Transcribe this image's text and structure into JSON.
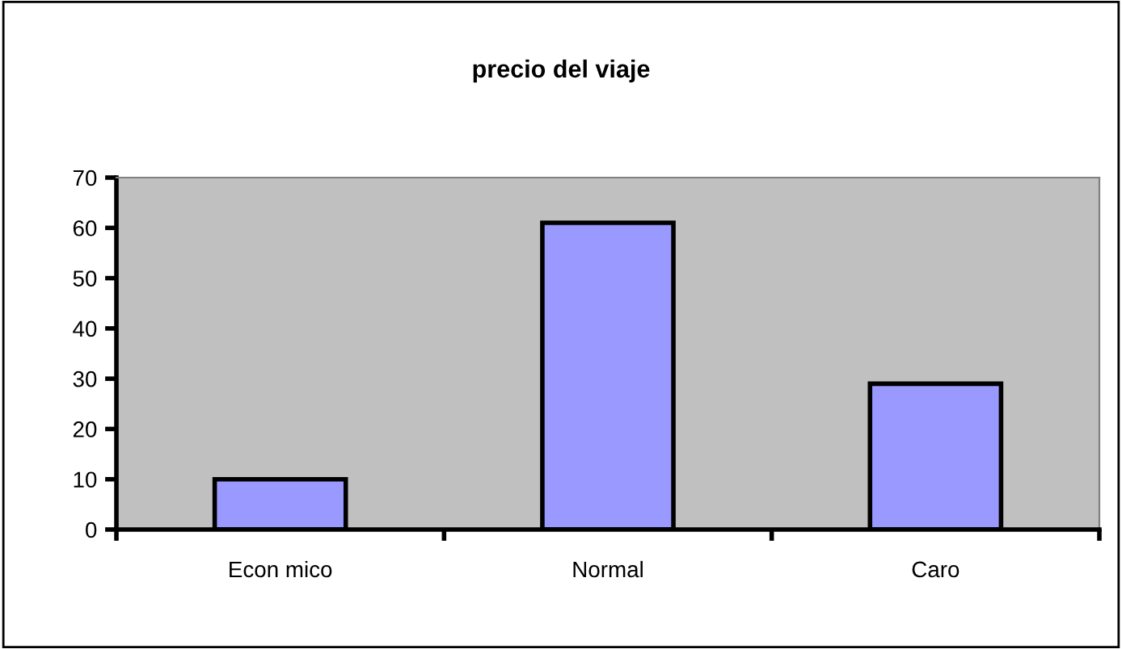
{
  "chart_data": {
    "type": "bar",
    "title": "precio del viaje",
    "categories": [
      "Econ mico",
      "Normal",
      "Caro"
    ],
    "values": [
      10,
      61,
      29
    ],
    "color": "#9999ff",
    "ylim": [
      0,
      70
    ],
    "yticks": [
      0,
      10,
      20,
      30,
      40,
      50,
      60,
      70
    ],
    "grid": false,
    "legend": false
  }
}
